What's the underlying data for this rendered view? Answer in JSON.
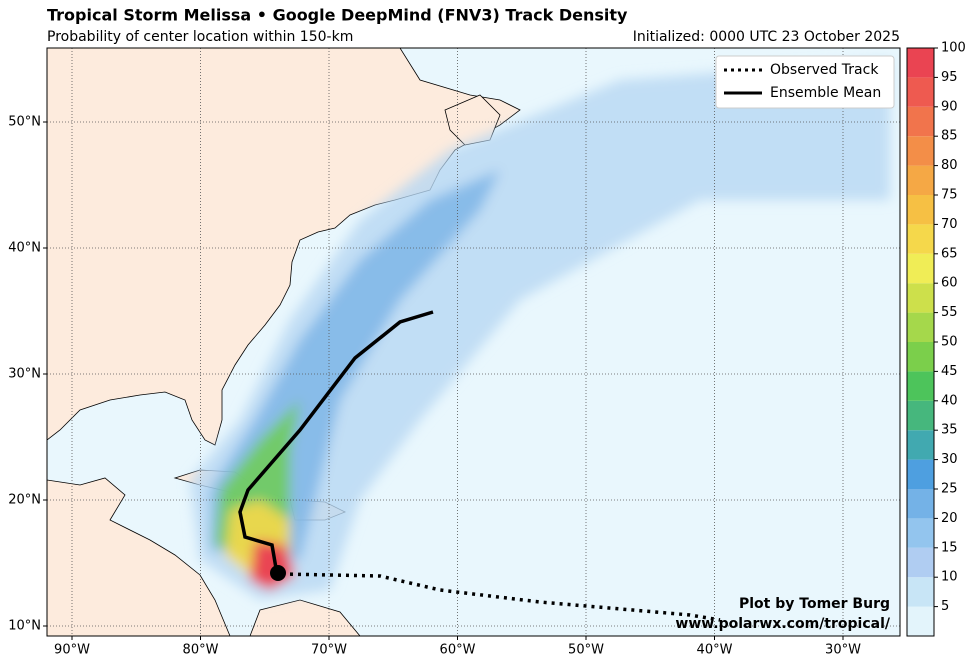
{
  "header": {
    "title": "Tropical Storm Melissa • Google DeepMind (FNV3) Track Density",
    "subtitle": "Probability of center location within 150-km",
    "initialized": "Initialized: 0000 UTC 23 October 2025"
  },
  "legend": [
    "Observed Track",
    "Ensemble Mean"
  ],
  "credit": [
    "Plot by Tomer Burg",
    "www.polarwx.com/tropical/"
  ],
  "map": {
    "lon_ticks": [
      {
        "value": -90,
        "label": "90°W"
      },
      {
        "value": -80,
        "label": "80°W"
      },
      {
        "value": -70,
        "label": "70°W"
      },
      {
        "value": -60,
        "label": "60°W"
      },
      {
        "value": -50,
        "label": "50°W"
      },
      {
        "value": -40,
        "label": "40°W"
      },
      {
        "value": -30,
        "label": "30°W"
      }
    ],
    "lat_ticks": [
      {
        "value": 10,
        "label": "10°N"
      },
      {
        "value": 20,
        "label": "20°N"
      },
      {
        "value": 30,
        "label": "30°N"
      },
      {
        "value": 40,
        "label": "40°N"
      },
      {
        "value": 50,
        "label": "50°N"
      }
    ]
  },
  "colorbar": {
    "range": [
      0,
      100
    ],
    "ticks": [
      5,
      10,
      15,
      20,
      25,
      30,
      35,
      40,
      45,
      50,
      55,
      60,
      65,
      70,
      75,
      80,
      85,
      90,
      95,
      100
    ],
    "colors": [
      "#e3f4fb",
      "#c8e5f6",
      "#b0cdf2",
      "#93c5ee",
      "#74b2e7",
      "#4e9fe0",
      "#41a9b0",
      "#46b77d",
      "#4dc45b",
      "#7bcf4b",
      "#a5d84b",
      "#cde04b",
      "#f0ed56",
      "#f5d84b",
      "#f6c044",
      "#f5a845",
      "#f38e48",
      "#f1744c",
      "#ee5a50",
      "#ea4452"
    ]
  }
}
